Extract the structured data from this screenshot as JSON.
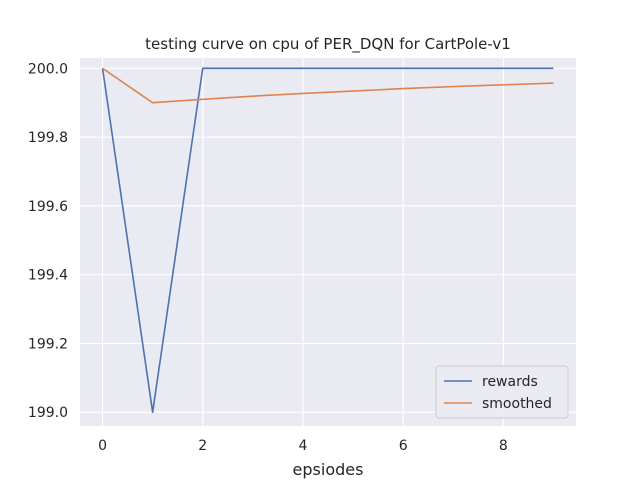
{
  "chart_data": {
    "type": "line",
    "title": "testing curve on cpu of PER_DQN for CartPole-v1",
    "xlabel": "epsiodes",
    "ylabel": "",
    "x": [
      0,
      1,
      2,
      3,
      4,
      5,
      6,
      7,
      8,
      9
    ],
    "xlim": [
      -0.45,
      9.45
    ],
    "ylim": [
      198.96,
      200.03
    ],
    "xticks": [
      0,
      2,
      4,
      6,
      8
    ],
    "yticks": [
      199.0,
      199.2,
      199.4,
      199.6,
      199.8,
      200.0
    ],
    "xtick_labels": [
      "0",
      "2",
      "4",
      "6",
      "8"
    ],
    "ytick_labels": [
      "199.0",
      "199.2",
      "199.4",
      "199.6",
      "199.8",
      "200.0"
    ],
    "grid": true,
    "legend_position": "lower-right",
    "series": [
      {
        "name": "rewards",
        "color": "#4c72b0",
        "values": [
          200,
          199,
          200,
          200,
          200,
          200,
          200,
          200,
          200,
          200
        ]
      },
      {
        "name": "smoothed",
        "color": "#dd8452",
        "values": [
          200,
          199.9,
          199.91,
          199.919,
          199.927,
          199.934,
          199.941,
          199.947,
          199.952,
          199.957
        ]
      }
    ],
    "background": "#eaeaf2",
    "grid_color": "#ffffff"
  }
}
